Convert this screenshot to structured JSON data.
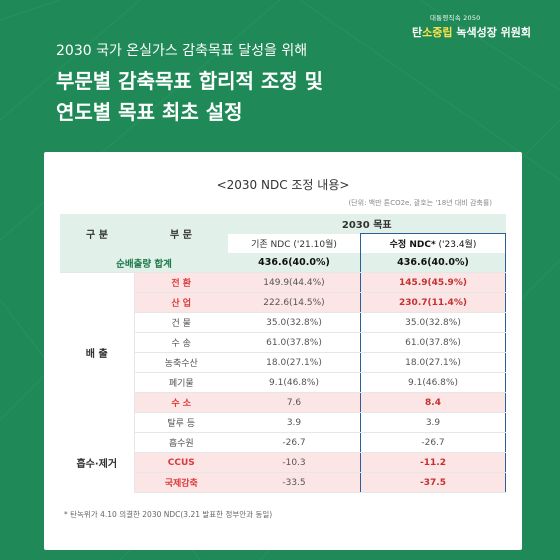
{
  "colors": {
    "background": "#1f8a57",
    "accent_yellow": "#ffe14a",
    "highlight_red": "#d93a3a",
    "box_blue": "#2a5f9a",
    "header_mint": "#e2f0ea",
    "row_pink": "#fce5e5"
  },
  "logo": {
    "small": "대통령직속 2050",
    "big_prefix": "탄",
    "big_highlight": "소중립",
    "big_suffix": " 녹색성장 위원회",
    "icon": "leaf-icon"
  },
  "header": {
    "subtitle": "2030 국가 온실가스 감축목표 달성을 위해",
    "title_line1": "부문별 감축목표 합리적 조정 및",
    "title_line2": "연도별 목표 최초 설정"
  },
  "card": {
    "title": "<2030 NDC 조정 내용>",
    "unit_note": "(단위: 백만 톤CO2e, 괄호는 '18년 대비 감축률)",
    "footnote": "* 탄녹위가 4.10 의결한 2030 NDC(3.21 발표한 정부안과 동일)"
  },
  "table": {
    "headers": {
      "group": "구 분",
      "category": "부 문",
      "target": "2030 목표",
      "old": "기존 NDC ('21.10월)",
      "new_main": "수정 NDC*",
      "new_sub": " ('23.4월)"
    },
    "total": {
      "label": "순배출량 합계",
      "old": "436.6(40.0%)",
      "new": "436.6(40.0%)"
    },
    "groups": {
      "emission": "배 출",
      "absorb": "흡수·제거"
    },
    "rows": [
      {
        "cat": "전 환",
        "old": "149.9(44.4%)",
        "new": "145.9(45.9%)"
      },
      {
        "cat": "산 업",
        "old": "222.6(14.5%)",
        "new": "230.7(11.4%)"
      },
      {
        "cat": "건 물",
        "old": "35.0(32.8%)",
        "new": "35.0(32.8%)"
      },
      {
        "cat": "수 송",
        "old": "61.0(37.8%)",
        "new": "61.0(37.8%)"
      },
      {
        "cat": "농축수산",
        "old": "18.0(27.1%)",
        "new": "18.0(27.1%)"
      },
      {
        "cat": "폐기물",
        "old": "9.1(46.8%)",
        "new": "9.1(46.8%)"
      },
      {
        "cat": "수 소",
        "old": "7.6",
        "new": "8.4"
      },
      {
        "cat": "탈루 등",
        "old": "3.9",
        "new": "3.9"
      },
      {
        "cat": "흡수원",
        "old": "-26.7",
        "new": "-26.7"
      },
      {
        "cat": "CCUS",
        "old": "-10.3",
        "new": "-11.2"
      },
      {
        "cat": "국제감축",
        "old": "-33.5",
        "new": "-37.5"
      }
    ]
  }
}
